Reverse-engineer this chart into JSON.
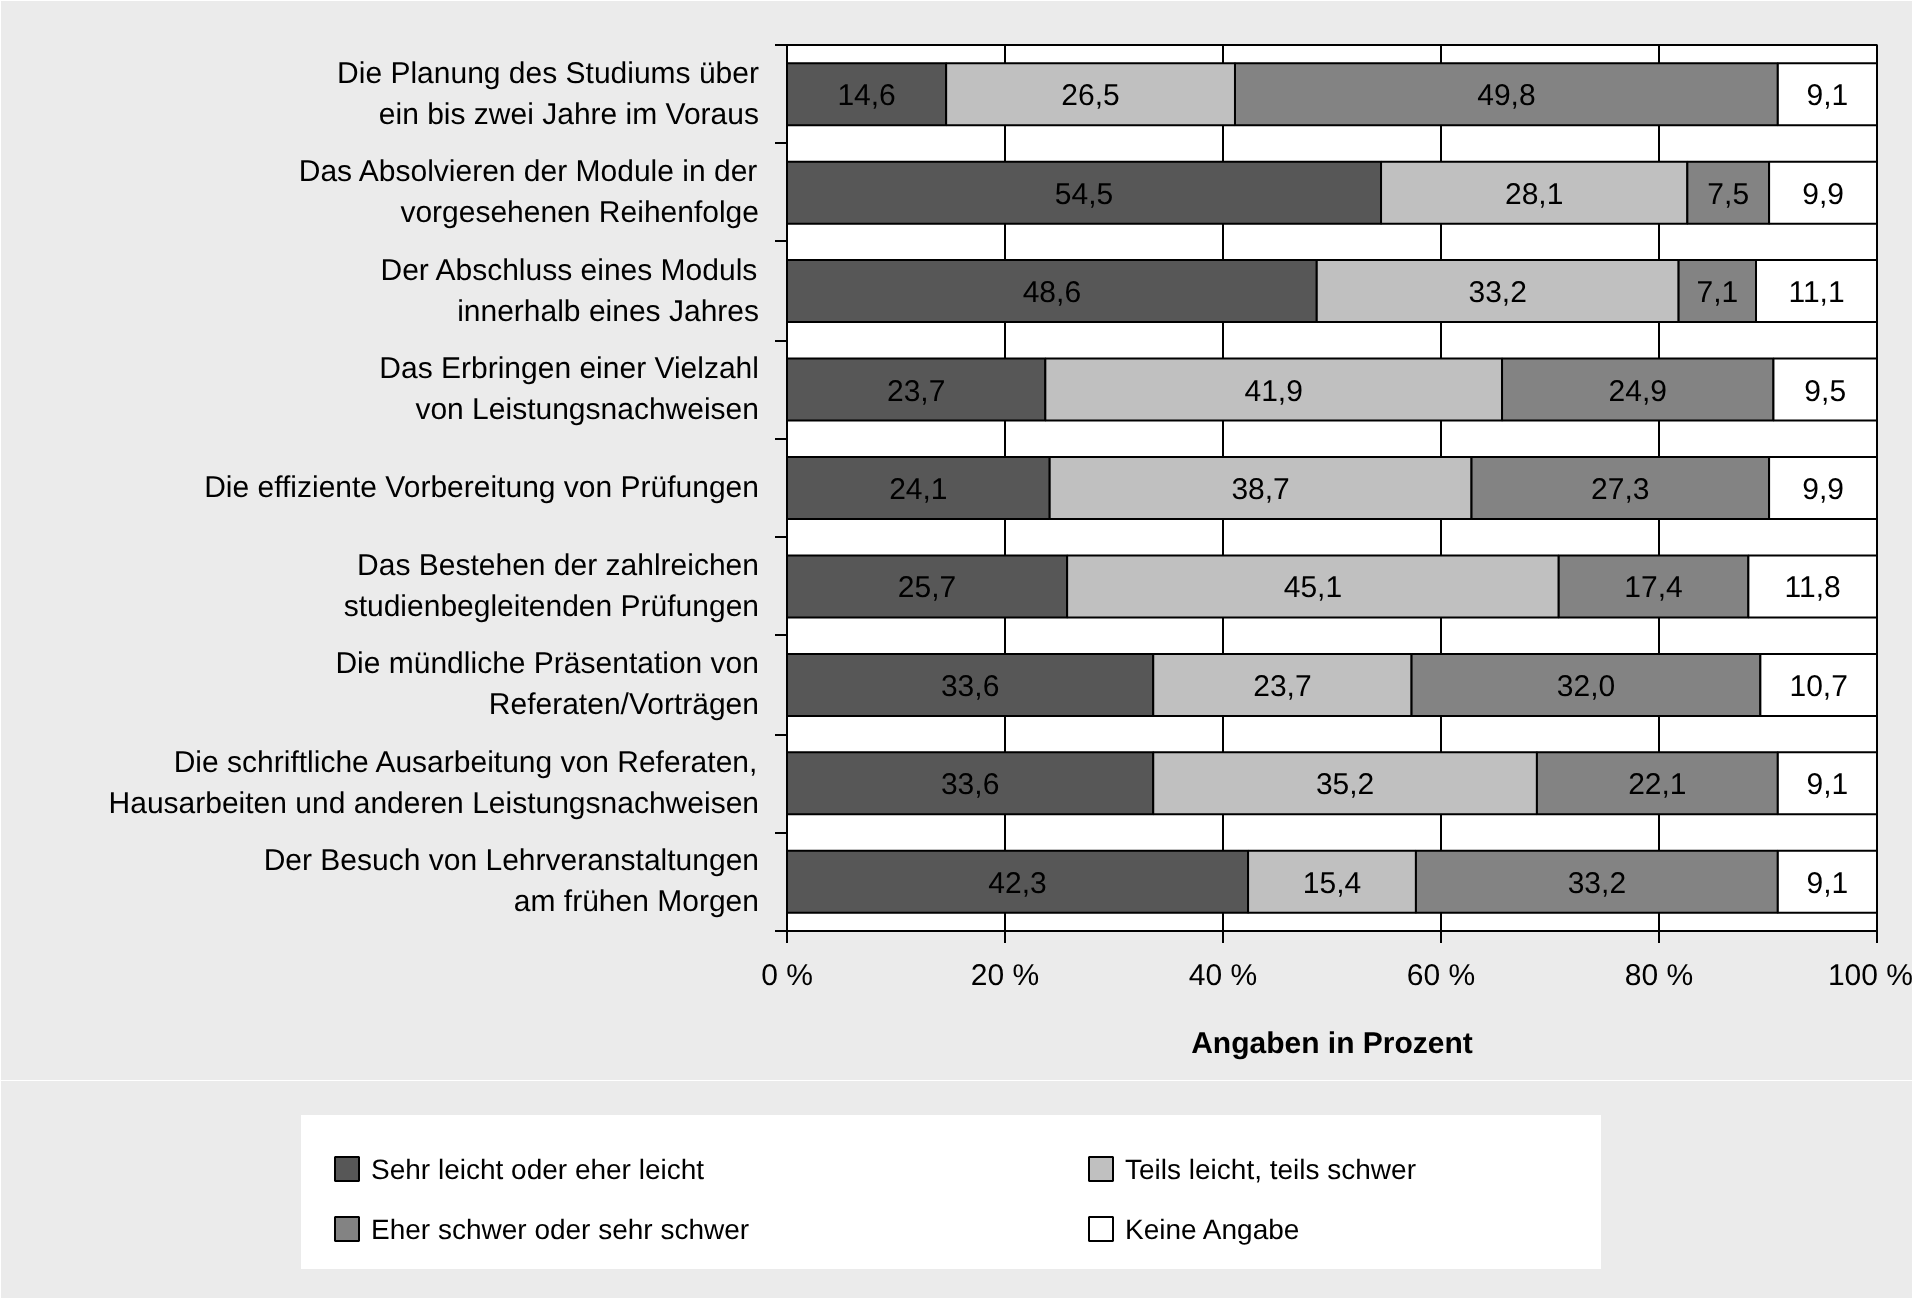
{
  "chart_data": {
    "type": "bar",
    "orientation": "horizontal",
    "stacked": true,
    "categories": [
      "Die Planung des Studiums über\nein bis zwei Jahre im Voraus",
      "Das Absolvieren der Module in der\nvorgesehenen Reihenfolge",
      "Der Abschluss eines Moduls\ninnerhalb eines Jahres",
      "Das Erbringen einer Vielzahl\nvon Leistungsnachweisen",
      "Die effiziente Vorbereitung von Prüfungen",
      "Das Bestehen der zahlreichen\nstudienbegleitenden Prüfungen",
      "Die mündliche Präsentation von\nReferaten/Vorträgen",
      "Die schriftliche Ausarbeitung von Referaten,\nHausarbeiten und anderen Leistungsnachweisen",
      "Der Besuch von Lehrveranstaltungen\nam frühen Morgen"
    ],
    "series": [
      {
        "name": "Sehr leicht oder eher leicht",
        "color": "#575757",
        "values": [
          14.6,
          54.5,
          48.6,
          23.7,
          24.1,
          25.7,
          33.6,
          33.6,
          42.3
        ],
        "value_labels": [
          "14,6",
          "54,5",
          "48,6",
          "23,7",
          "24,1",
          "25,7",
          "33,6",
          "33,6",
          "42,3"
        ]
      },
      {
        "name": "Teils leicht, teils schwer",
        "color": "#c0c0c0",
        "values": [
          26.5,
          28.1,
          33.2,
          41.9,
          38.7,
          45.1,
          23.7,
          35.2,
          15.4
        ],
        "value_labels": [
          "26,5",
          "28,1",
          "33,2",
          "41,9",
          "38,7",
          "45,1",
          "23,7",
          "35,2",
          "15,4"
        ]
      },
      {
        "name": "Eher schwer oder sehr schwer",
        "color": "#838383",
        "values": [
          49.8,
          7.5,
          7.1,
          24.9,
          27.3,
          17.4,
          32.0,
          22.1,
          33.2
        ],
        "value_labels": [
          "49,8",
          "7,5",
          "7,1",
          "24,9",
          "27,3",
          "17,4",
          "32,0",
          "22,1",
          "33,2"
        ]
      },
      {
        "name": "Keine Angabe",
        "color": "#ffffff",
        "values": [
          9.1,
          9.9,
          11.1,
          9.5,
          9.9,
          11.8,
          10.7,
          9.1,
          9.1
        ],
        "value_labels": [
          "9,1",
          "9,9",
          "11,1",
          "9,5",
          "9,9",
          "11,8",
          "10,7",
          "9,1",
          "9,1"
        ]
      }
    ],
    "xlim": [
      0,
      100
    ],
    "xticks": [
      {
        "value": 0,
        "label": "0 %"
      },
      {
        "value": 20,
        "label": "20 %"
      },
      {
        "value": 40,
        "label": "40 %"
      },
      {
        "value": 60,
        "label": "60 %"
      },
      {
        "value": 80,
        "label": "80 %"
      },
      {
        "value": 100,
        "label": "100 %"
      }
    ],
    "xlabel": "Angaben in Prozent",
    "grid": "x",
    "legend": "bottom"
  }
}
